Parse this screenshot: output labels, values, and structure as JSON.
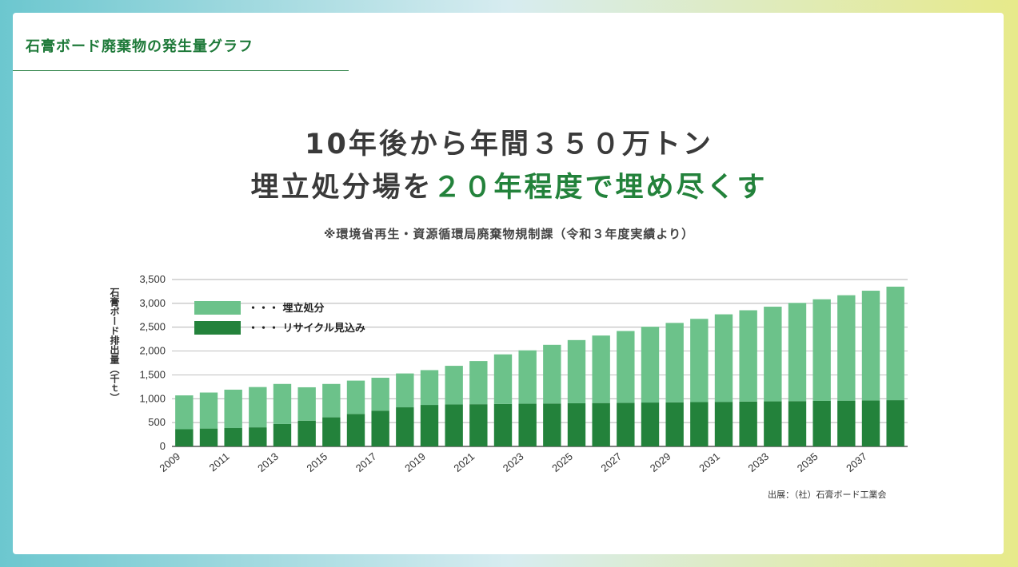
{
  "section_title": "石膏ボード廃棄物の発生量グラフ",
  "headline": {
    "line1": "10年後から年間３５０万トン",
    "line2_prefix": "埋立処分場を",
    "line2_accent": "２０年程度で埋め尽くす"
  },
  "source_note": "※環境省再生・資源循環局廃棄物規制課（令和３年度実績より）",
  "footer_source": "出展：（社）石膏ボード工業会",
  "colors": {
    "landfill": "#6cc28a",
    "recycle": "#23823b",
    "accent": "#23823b"
  },
  "chart_data": {
    "type": "bar",
    "stacked": true,
    "ylabel": "石膏ボード排出量（千ｔ）",
    "ylim": [
      0,
      3500
    ],
    "yticks": [
      0,
      500,
      1000,
      1500,
      2000,
      2500,
      3000,
      3500
    ],
    "ytick_labels": [
      "0",
      "500",
      "1,000",
      "1,500",
      "2,000",
      "2,500",
      "3,000",
      "3,500"
    ],
    "grid": true,
    "legend_position": "top-left",
    "categories": [
      "2009",
      "2010",
      "2011",
      "2012",
      "2013",
      "2014",
      "2015",
      "2016",
      "2017",
      "2018",
      "2019",
      "2020",
      "2021",
      "2022",
      "2023",
      "2024",
      "2025",
      "2026",
      "2027",
      "2028",
      "2029",
      "2030",
      "2031",
      "2032",
      "2033",
      "2034",
      "2035",
      "2036",
      "2037",
      "2038"
    ],
    "xtick_labels": [
      "2009",
      "",
      "2011",
      "",
      "2013",
      "",
      "2015",
      "",
      "2017",
      "",
      "2019",
      "",
      "2021",
      "",
      "2023",
      "",
      "2025",
      "",
      "2027",
      "",
      "2029",
      "",
      "2031",
      "",
      "2033",
      "",
      "2035",
      "",
      "2037",
      ""
    ],
    "series": [
      {
        "name": "リサイクル見込み",
        "legend_label": "・・・ リサイクル見込み",
        "values": [
          360,
          375,
          385,
          400,
          470,
          540,
          610,
          680,
          750,
          820,
          870,
          880,
          885,
          890,
          895,
          900,
          905,
          910,
          915,
          920,
          925,
          930,
          935,
          940,
          945,
          950,
          955,
          960,
          965,
          970
        ]
      },
      {
        "name": "埋立処分",
        "legend_label": "・・・ 埋立処分",
        "values": [
          710,
          755,
          805,
          845,
          840,
          700,
          700,
          700,
          690,
          710,
          730,
          810,
          905,
          1040,
          1120,
          1230,
          1325,
          1415,
          1505,
          1590,
          1665,
          1745,
          1835,
          1915,
          1985,
          2060,
          2130,
          2210,
          2300,
          2380
        ]
      }
    ]
  }
}
